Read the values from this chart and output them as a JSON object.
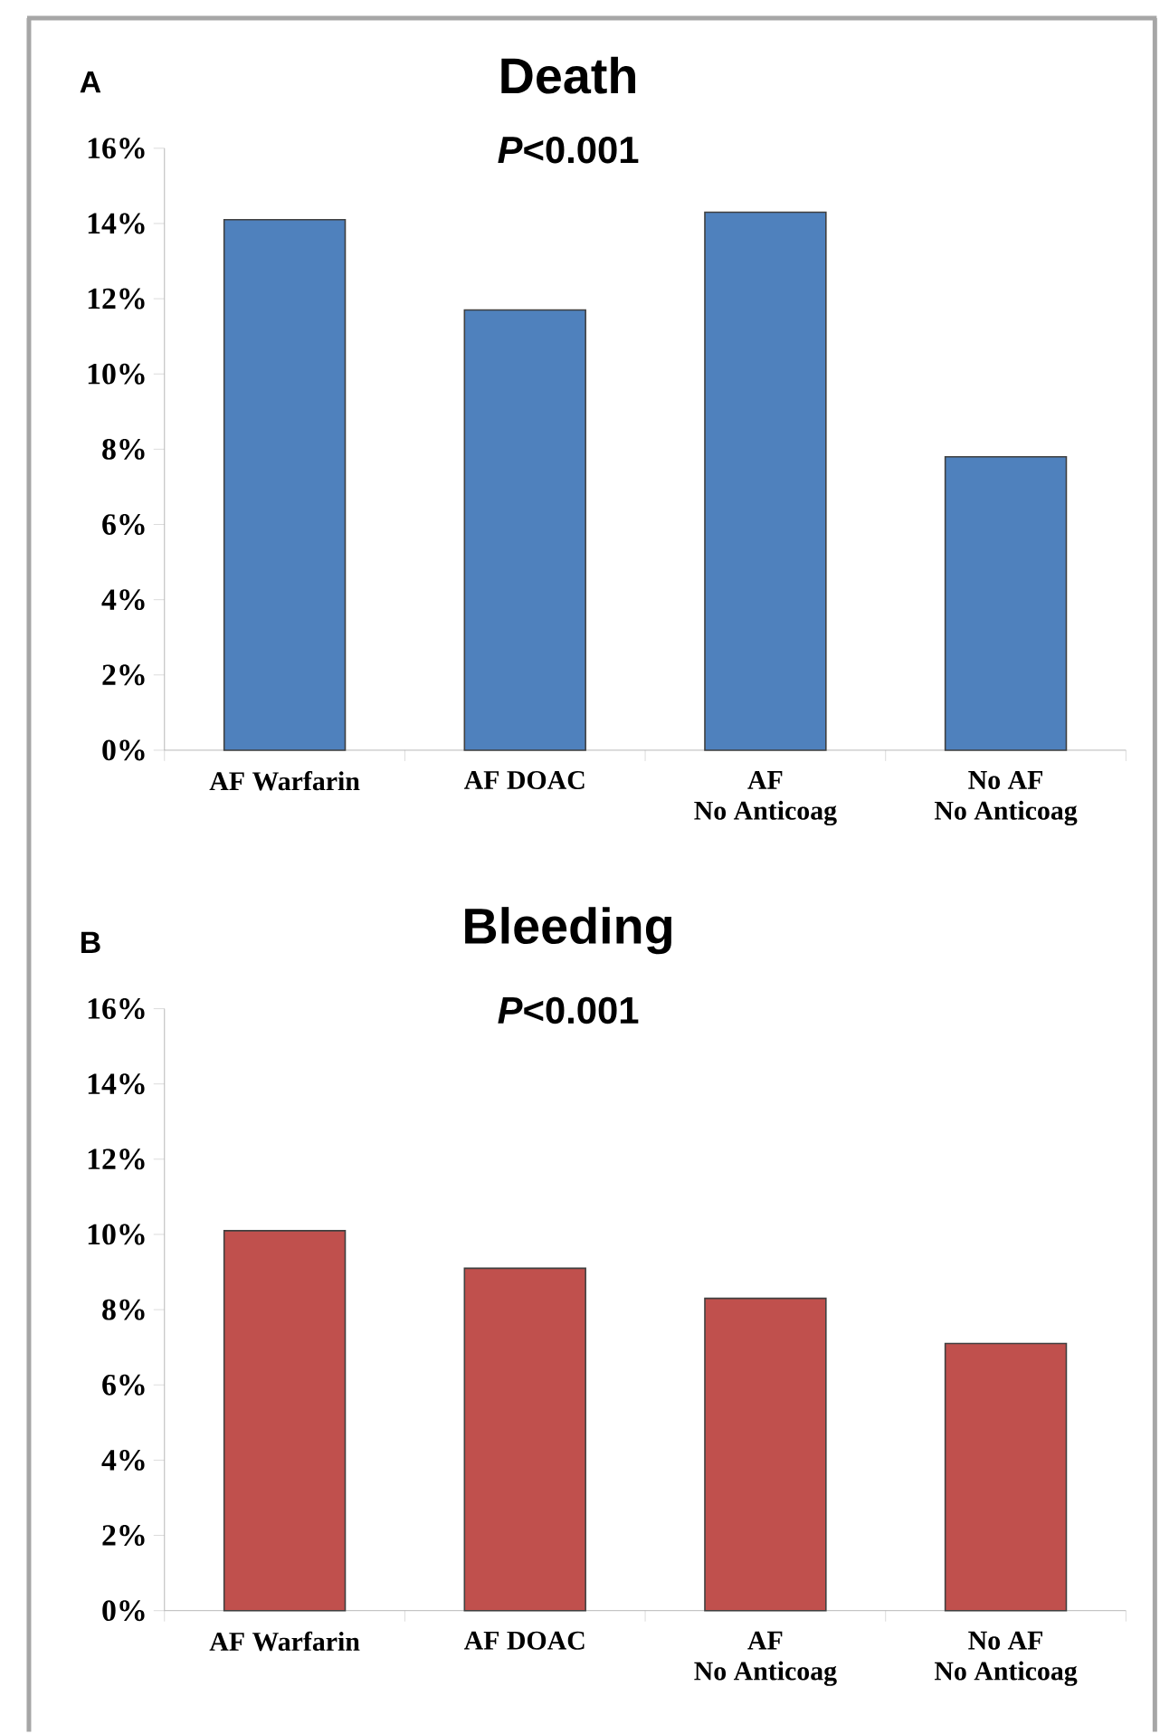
{
  "chart_data": [
    {
      "type": "bar",
      "title": "Death",
      "subtitle": "*P*<0.001",
      "annotations": [
        "A"
      ],
      "categories": [
        "AF Warfarin",
        "AF DOAC",
        "AF\nNo Anticoag",
        "No AF\nNo Anticoag"
      ],
      "values": [
        14.1,
        11.7,
        14.3,
        7.8
      ],
      "color": "#4f81bd",
      "ylim": [
        0,
        16
      ],
      "yticks": [
        {
          "value": 0,
          "label": "0%"
        },
        {
          "value": 2,
          "label": "2%"
        },
        {
          "value": 4,
          "label": "4%"
        },
        {
          "value": 6,
          "label": "6%"
        },
        {
          "value": 8,
          "label": "8%"
        },
        {
          "value": 10,
          "label": "10%"
        },
        {
          "value": 12,
          "label": "12%"
        },
        {
          "value": 14,
          "label": "14%"
        },
        {
          "value": 16,
          "label": "16%"
        }
      ]
    },
    {
      "type": "bar",
      "title": "Bleeding",
      "subtitle": "*P*<0.001",
      "annotations": [
        "B"
      ],
      "categories": [
        "AF Warfarin",
        "AF DOAC",
        "AF\nNo Anticoag",
        "No AF\nNo Anticoag"
      ],
      "values": [
        10.1,
        9.1,
        8.3,
        7.1
      ],
      "color": "#c0504d",
      "ylim": [
        0,
        16
      ],
      "yticks": [
        {
          "value": 0,
          "label": "0%"
        },
        {
          "value": 2,
          "label": "2%"
        },
        {
          "value": 4,
          "label": "4%"
        },
        {
          "value": 6,
          "label": "6%"
        },
        {
          "value": 8,
          "label": "8%"
        },
        {
          "value": 10,
          "label": "10%"
        },
        {
          "value": 12,
          "label": "12%"
        },
        {
          "value": 14,
          "label": "14%"
        },
        {
          "value": 16,
          "label": "16%"
        }
      ]
    }
  ]
}
